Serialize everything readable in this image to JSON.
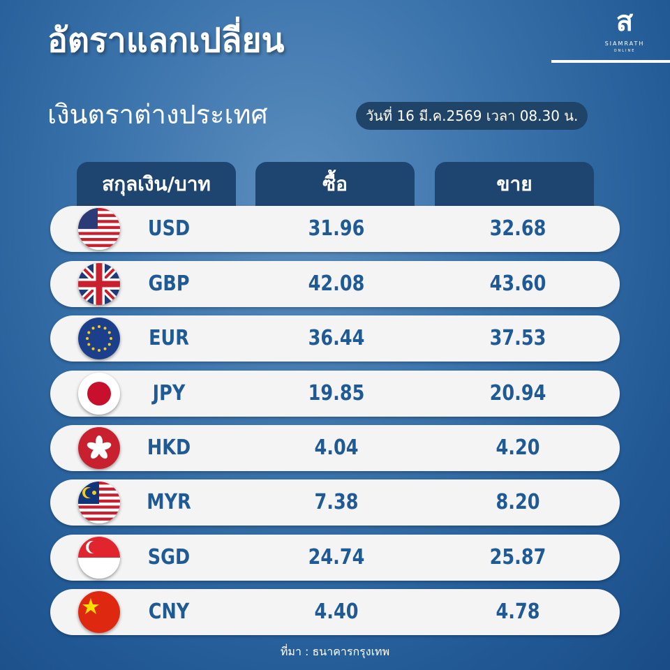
{
  "title": "อัตราแลกเปลี่ยน",
  "subtitle": "เงินตราต่างประเทศ",
  "date": "วันที่ 16 มี.ค.2569 เวลา 08.30 น.",
  "logo": {
    "glyph": "ส",
    "brand": "SIAMRATH",
    "brand2": "ONLINE"
  },
  "headers": [
    "สกุลเงิน/บาท",
    "ซื้อ",
    "ขาย"
  ],
  "rows": [
    {
      "code": "USD",
      "buy": "31.96",
      "sell": "32.68",
      "flag": "us-flag"
    },
    {
      "code": "GBP",
      "buy": "42.08",
      "sell": "43.60",
      "flag": "uk-flag"
    },
    {
      "code": "EUR",
      "buy": "36.44",
      "sell": "37.53",
      "flag": "eu-flag"
    },
    {
      "code": "JPY",
      "buy": "19.85",
      "sell": "20.94",
      "flag": "japan-flag"
    },
    {
      "code": "HKD",
      "buy": "4.04",
      "sell": "4.20",
      "flag": "hong-kong-flag"
    },
    {
      "code": "MYR",
      "buy": "7.38",
      "sell": "8.20",
      "flag": "malaysia-flag"
    },
    {
      "code": "SGD",
      "buy": "24.74",
      "sell": "25.87",
      "flag": "singapore-flag"
    },
    {
      "code": "CNY",
      "buy": "4.40",
      "sell": "4.78",
      "flag": "china-flag"
    }
  ],
  "source": "ที่มา : ธนาคารกรุงเทพ",
  "colors": {
    "accent": "#1f5a94",
    "header": "#1d4570",
    "row": "#f4f4f4"
  }
}
